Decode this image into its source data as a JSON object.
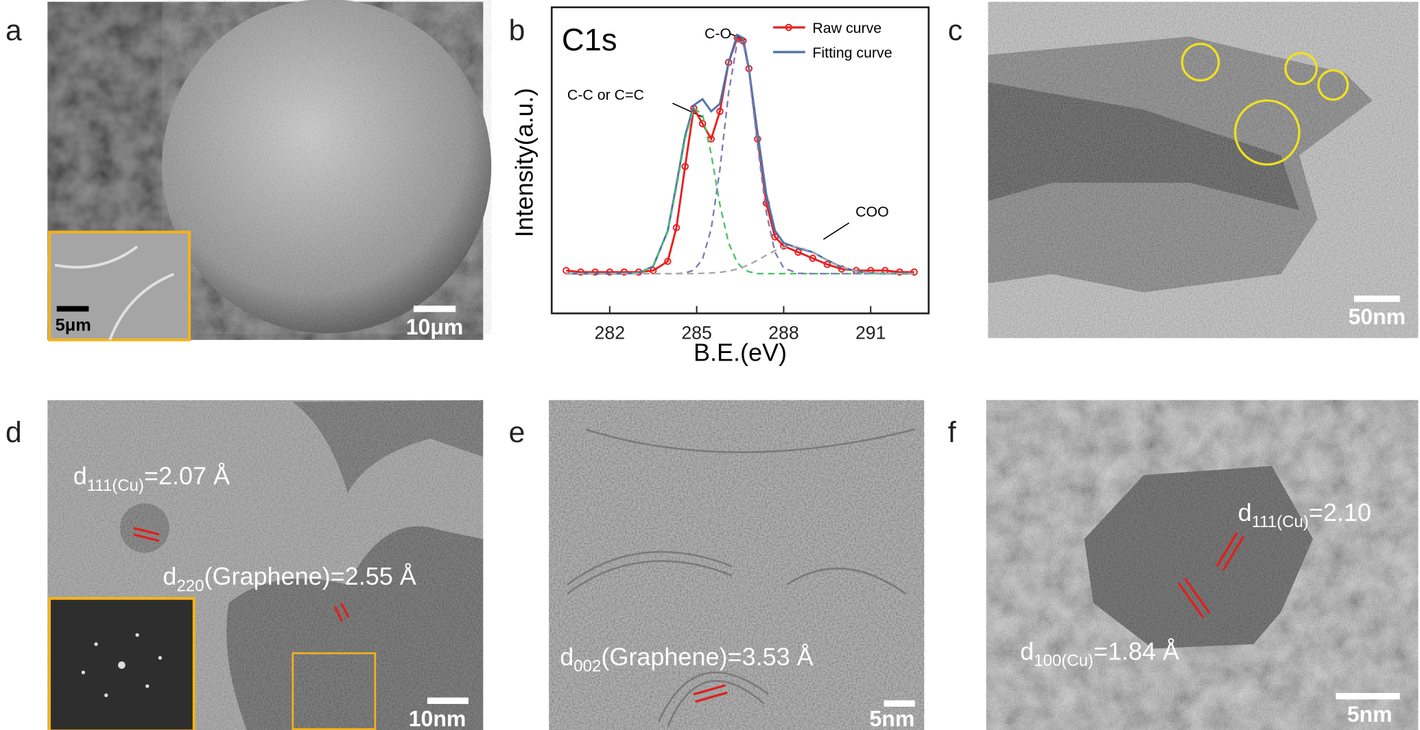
{
  "panels": [
    {
      "label": "a",
      "scale_bar": "10μm",
      "inset_scale_bar": "5μm"
    },
    {
      "label": "c",
      "scale_bar": "50nm"
    },
    {
      "label": "d",
      "scale_bar": "10nm",
      "annotations": [
        {
          "symbol": "d",
          "subscript": "111(Cu)",
          "text": "=2.07 Å"
        },
        {
          "symbol": "d",
          "subscript": "220",
          "text": "(Graphene)=2.55 Å"
        }
      ]
    },
    {
      "label": "e",
      "scale_bar": "5nm",
      "annotations": [
        {
          "symbol": "d",
          "subscript": "002",
          "text": "(Graphene)=3.53 Å"
        }
      ]
    },
    {
      "label": "f",
      "scale_bar": "5nm",
      "annotations": [
        {
          "symbol": "d",
          "subscript": "111(Cu)",
          "text": "=2.10"
        },
        {
          "symbol": "d",
          "subscript": "100(Cu)",
          "text": "=1.84 Å"
        }
      ]
    }
  ],
  "chart_data": {
    "type": "line",
    "label": "b",
    "title": "C1s",
    "x_label": "B.E.(eV)",
    "y_label": "Intensity(a.u.)",
    "annotations": [
      "C-O",
      "C-C or C=C",
      "COO"
    ],
    "xlim": [
      280,
      293
    ],
    "xticks": [
      282,
      285,
      288,
      291
    ],
    "ylim": [
      0,
      100
    ],
    "legend": "upper right",
    "x": [
      280.5,
      281,
      281.5,
      282,
      282.5,
      283,
      283.5,
      284,
      284.3,
      284.6,
      284.9,
      285.2,
      285.5,
      285.8,
      286.1,
      286.4,
      286.6,
      286.8,
      287.1,
      287.4,
      287.7,
      288,
      288.5,
      289,
      289.5,
      290,
      290.5,
      291,
      291.5,
      292,
      292.5
    ],
    "series": [
      {
        "name": "Raw curve",
        "color": "#e8201f",
        "line_style": "solid",
        "markers": true,
        "values": [
          14,
          13.5,
          13.5,
          13.5,
          13.5,
          13.5,
          14,
          17,
          28,
          48,
          67,
          62,
          57,
          66,
          82,
          90,
          89,
          80,
          57,
          36,
          25,
          22,
          20,
          18,
          16,
          14.5,
          14,
          14,
          14,
          13.5,
          13.5
        ]
      },
      {
        "name": "Fitting curve",
        "color": "#4f74a8",
        "line_style": "solid",
        "markers": false,
        "values": [
          13,
          13,
          13,
          13,
          13,
          13.2,
          15.4,
          26.9,
          42,
          58,
          68,
          70,
          66,
          68.5,
          82,
          91,
          90,
          80,
          59,
          39,
          27,
          23,
          21.3,
          20,
          17.4,
          15.1,
          13.8,
          13.2,
          13,
          13,
          13
        ]
      },
      {
        "color": "#4cc26a",
        "line_style": "dashed",
        "markers": false,
        "values": [
          13,
          13,
          13,
          13,
          13,
          13.2,
          15.4,
          26.7,
          41,
          57,
          67,
          65,
          52,
          35.5,
          23,
          16.6,
          14.6,
          13.6,
          13,
          13,
          13,
          13,
          13,
          13,
          13,
          13,
          13,
          13,
          13,
          13,
          13
        ]
      },
      {
        "color": "#7d7fb5",
        "line_style": "dashed",
        "markers": false,
        "values": [
          13,
          13,
          13,
          13,
          13,
          13,
          13,
          13,
          13,
          13.2,
          14.1,
          17.7,
          27.6,
          47,
          72,
          88.7,
          88.7,
          79,
          55,
          33,
          20,
          14.8,
          13.1,
          13,
          13,
          13,
          13,
          13,
          13,
          13,
          13
        ]
      },
      {
        "color": "#a9a9a9",
        "line_style": "dashed",
        "markers": false,
        "values": [
          13,
          13,
          13,
          13,
          13,
          13,
          13,
          13,
          13,
          13,
          13,
          13.1,
          13.2,
          13.4,
          13.8,
          14.5,
          15.1,
          15.9,
          17.4,
          19,
          20.5,
          21.6,
          21.8,
          20,
          17.4,
          15.1,
          13.8,
          13.2,
          13,
          13,
          13
        ]
      }
    ]
  }
}
